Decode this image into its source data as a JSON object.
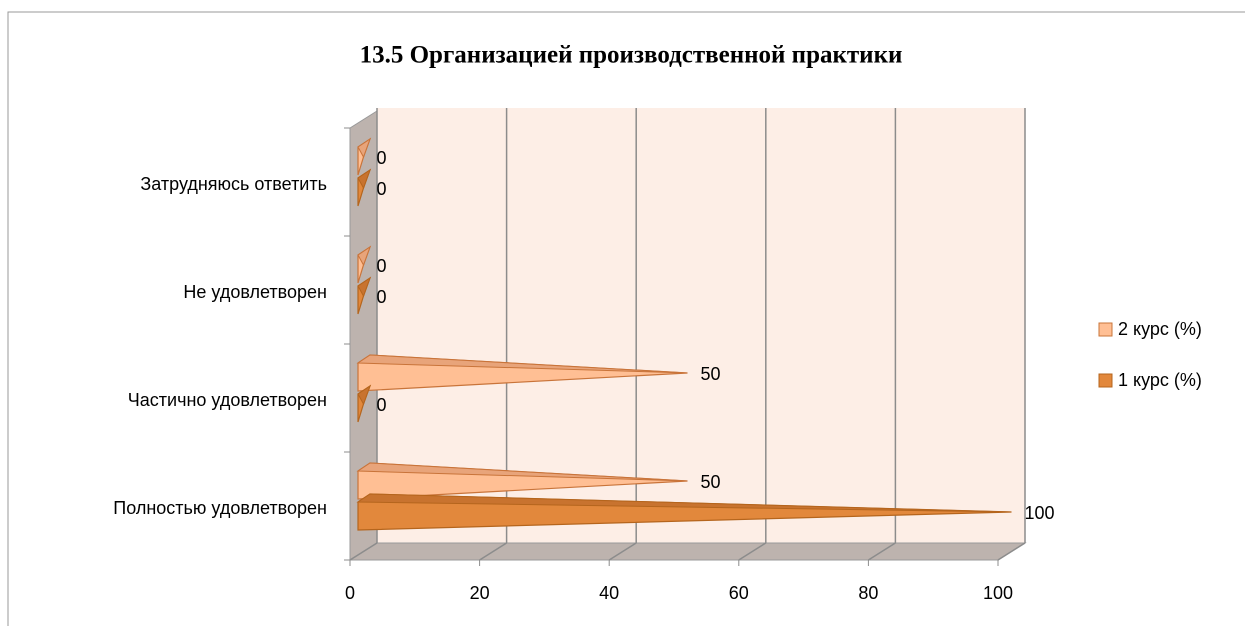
{
  "chart_data": {
    "type": "bar3d",
    "title": "13.5 Организацией производственной практики",
    "categories": [
      "Полностью удовлетворен",
      "Частично удовлетворен",
      "Не удовлетворен",
      "Затрудняюсь ответить"
    ],
    "series": [
      {
        "name": "2 курс (%)",
        "color": "#FFBF94",
        "values": [
          50,
          50,
          0,
          0
        ]
      },
      {
        "name": "1 курс (%)",
        "color": "#E2883C",
        "values": [
          100,
          0,
          0,
          0
        ]
      }
    ],
    "xlim": [
      0,
      100
    ],
    "xticks": [
      0,
      20,
      40,
      60,
      80,
      100
    ],
    "grid": true,
    "legend": "right"
  }
}
